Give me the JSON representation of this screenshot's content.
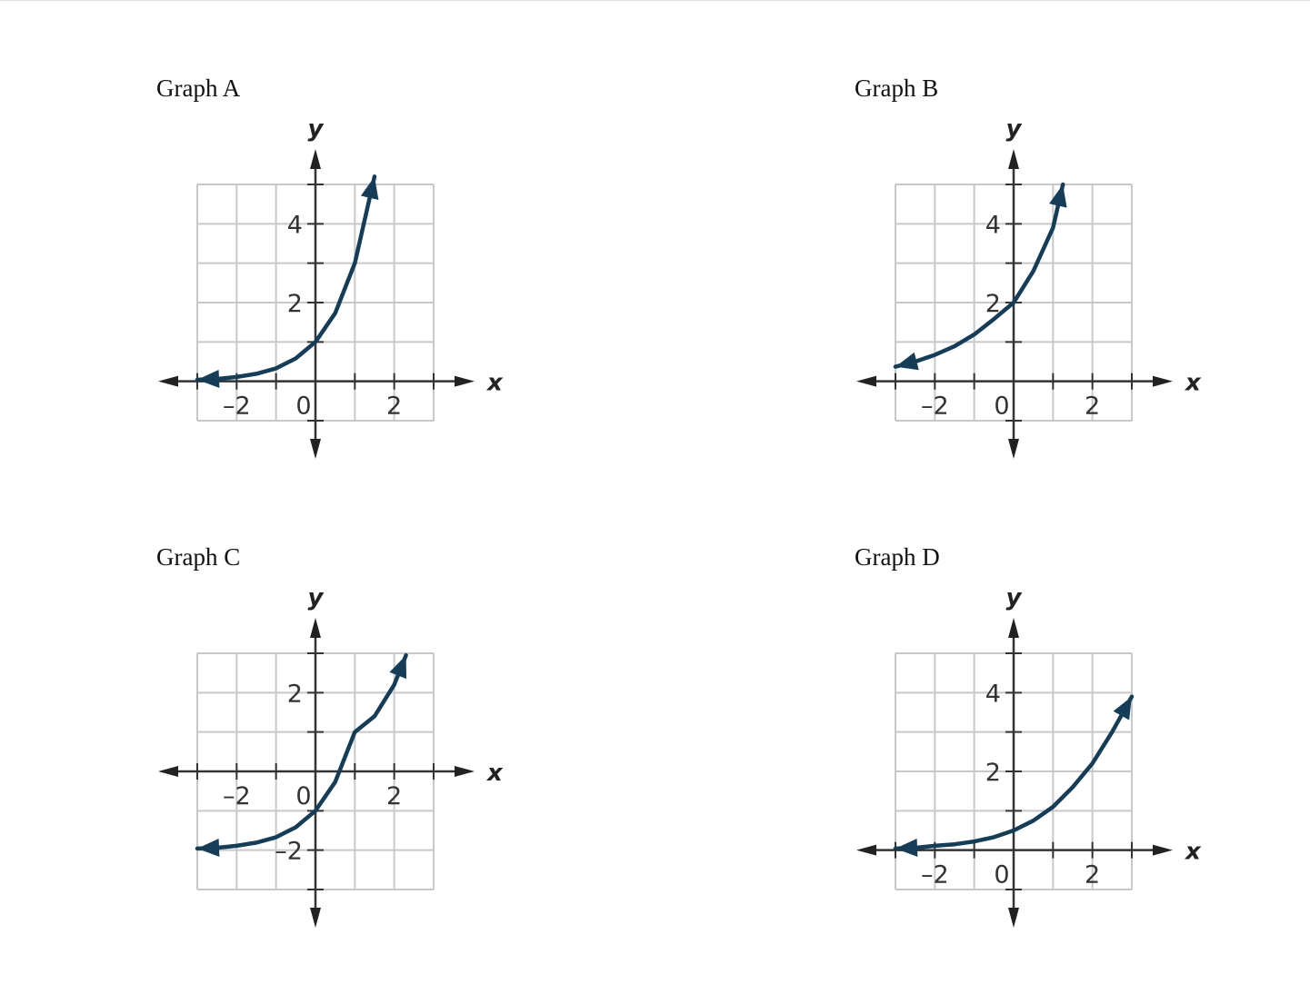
{
  "chart_data": [
    {
      "type": "line",
      "title": "Graph A",
      "xlabel": "x",
      "ylabel": "y",
      "xlim": [
        -3,
        3
      ],
      "ylim": [
        -1,
        5
      ],
      "grid": true,
      "x_tick_labels": [
        {
          "value": -2,
          "text": "–2"
        },
        {
          "value": 0,
          "text": "0"
        },
        {
          "value": 2,
          "text": "2"
        }
      ],
      "y_tick_labels": [
        {
          "value": 2,
          "text": "2"
        },
        {
          "value": 4,
          "text": "4"
        }
      ],
      "color": "#153d57",
      "series": [
        {
          "x": [
            -3.0,
            -2.5,
            -2.0,
            -1.5,
            -1.0,
            -0.5,
            0.0,
            0.5,
            1.0,
            1.5
          ],
          "y": [
            0.04,
            0.06,
            0.11,
            0.19,
            0.33,
            0.58,
            1.0,
            1.73,
            3.0,
            5.2
          ]
        }
      ]
    },
    {
      "type": "line",
      "title": "Graph B",
      "xlabel": "x",
      "ylabel": "y",
      "xlim": [
        -3,
        3
      ],
      "ylim": [
        -1,
        5
      ],
      "grid": true,
      "x_tick_labels": [
        {
          "value": -2,
          "text": "–2"
        },
        {
          "value": 0,
          "text": "0"
        },
        {
          "value": 2,
          "text": "2"
        }
      ],
      "y_tick_labels": [
        {
          "value": 2,
          "text": "2"
        },
        {
          "value": 4,
          "text": "4"
        }
      ],
      "color": "#153d57",
      "series": [
        {
          "x": [
            -3.0,
            -2.5,
            -2.0,
            -1.5,
            -1.0,
            -0.5,
            0.0,
            0.5,
            1.0,
            1.25
          ],
          "y": [
            0.37,
            0.5,
            0.67,
            0.89,
            1.19,
            1.58,
            2.0,
            2.8,
            3.9,
            5.0
          ]
        }
      ]
    },
    {
      "type": "line",
      "title": "Graph C",
      "xlabel": "x",
      "ylabel": "y",
      "xlim": [
        -3,
        3
      ],
      "ylim": [
        -3,
        3
      ],
      "grid": true,
      "x_tick_labels": [
        {
          "value": -2,
          "text": "–2"
        },
        {
          "value": 0,
          "text": "0"
        },
        {
          "value": 2,
          "text": "2"
        }
      ],
      "y_tick_labels": [
        {
          "value": 2,
          "text": "2"
        },
        {
          "value": -2,
          "text": "–2"
        }
      ],
      "color": "#153d57",
      "series": [
        {
          "x": [
            -3.0,
            -2.5,
            -2.0,
            -1.5,
            -1.0,
            -0.5,
            0.0,
            0.5,
            1.0,
            1.5,
            2.0,
            2.3
          ],
          "y": [
            -1.96,
            -1.94,
            -1.89,
            -1.81,
            -1.67,
            -1.42,
            -1.0,
            -0.27,
            1.0,
            1.4,
            2.2,
            2.95
          ]
        }
      ]
    },
    {
      "type": "line",
      "title": "Graph D",
      "xlabel": "x",
      "ylabel": "y",
      "xlim": [
        -3,
        3
      ],
      "ylim": [
        -1,
        5
      ],
      "grid": true,
      "x_tick_labels": [
        {
          "value": -2,
          "text": "–2"
        },
        {
          "value": 0,
          "text": "0"
        },
        {
          "value": 2,
          "text": "2"
        }
      ],
      "y_tick_labels": [
        {
          "value": 2,
          "text": "2"
        },
        {
          "value": 4,
          "text": "4"
        }
      ],
      "color": "#153d57",
      "series": [
        {
          "x": [
            -3.0,
            -2.5,
            -2.0,
            -1.5,
            -1.0,
            -0.5,
            0.0,
            0.5,
            1.0,
            1.5,
            2.0,
            2.5,
            3.0
          ],
          "y": [
            0.04,
            0.06,
            0.11,
            0.15,
            0.22,
            0.33,
            0.5,
            0.75,
            1.1,
            1.6,
            2.2,
            3.0,
            3.9
          ]
        }
      ]
    }
  ]
}
